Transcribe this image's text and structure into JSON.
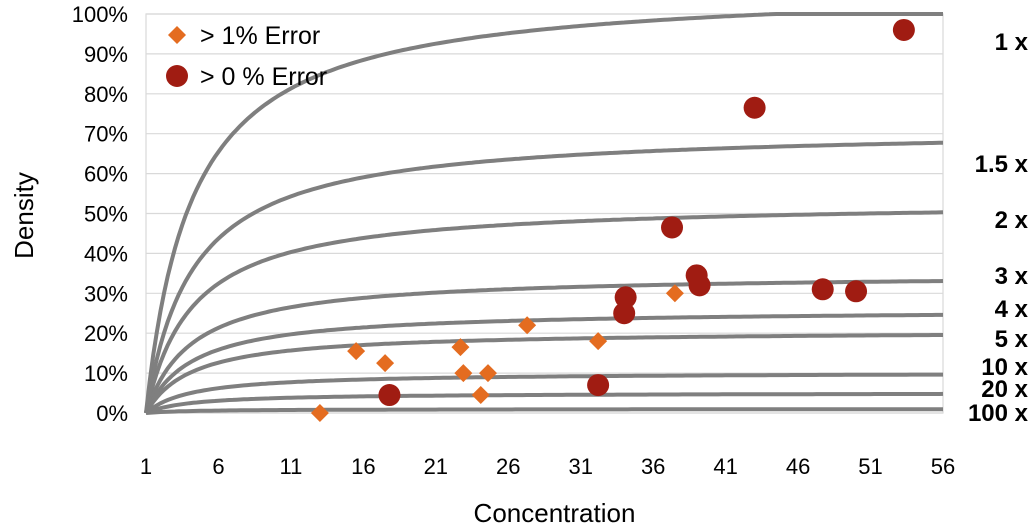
{
  "chart_data": {
    "type": "scatter",
    "xlabel": "Concentration",
    "ylabel": "Density",
    "xlim": [
      1,
      56
    ],
    "ylim": [
      0,
      1
    ],
    "x_ticks": [
      "1",
      "6",
      "11",
      "16",
      "21",
      "26",
      "31",
      "36",
      "41",
      "46",
      "51",
      "56"
    ],
    "y_ticks": [
      "0%",
      "10%",
      "20%",
      "30%",
      "40%",
      "50%",
      "60%",
      "70%",
      "80%",
      "90%",
      "100%"
    ],
    "grid": "horizontal",
    "legend_position": "top-left",
    "curves": [
      {
        "label": "1 x",
        "k": 1
      },
      {
        "label": "1.5 x",
        "k": 1.5
      },
      {
        "label": "2 x",
        "k": 2
      },
      {
        "label": "3 x",
        "k": 3
      },
      {
        "label": "4 x",
        "k": 4
      },
      {
        "label": "5 x",
        "k": 5
      },
      {
        "label": "10 x",
        "k": 10
      },
      {
        "label": "20 x",
        "k": 20
      },
      {
        "label": "100 x",
        "k": 100
      }
    ],
    "curve_color": "#7f7f7f",
    "series": [
      {
        "name": "> 1% Error",
        "marker": "diamond",
        "color": "#e46c20",
        "points": [
          [
            13,
            0.0
          ],
          [
            15.5,
            0.155
          ],
          [
            17.5,
            0.125
          ],
          [
            22.7,
            0.165
          ],
          [
            22.9,
            0.1
          ],
          [
            24.1,
            0.045
          ],
          [
            24.6,
            0.1
          ],
          [
            27.3,
            0.22
          ],
          [
            32.2,
            0.18
          ],
          [
            37.5,
            0.3
          ]
        ]
      },
      {
        "name": "> 0 % Error",
        "marker": "circle",
        "color": "#a01c12",
        "points": [
          [
            17.8,
            0.045
          ],
          [
            32.2,
            0.07
          ],
          [
            34.1,
            0.29
          ],
          [
            34.0,
            0.25
          ],
          [
            37.3,
            0.465
          ],
          [
            39.0,
            0.345
          ],
          [
            39.2,
            0.32
          ],
          [
            43.0,
            0.765
          ],
          [
            47.7,
            0.31
          ],
          [
            50.0,
            0.305
          ],
          [
            53.3,
            0.96
          ]
        ]
      }
    ]
  }
}
